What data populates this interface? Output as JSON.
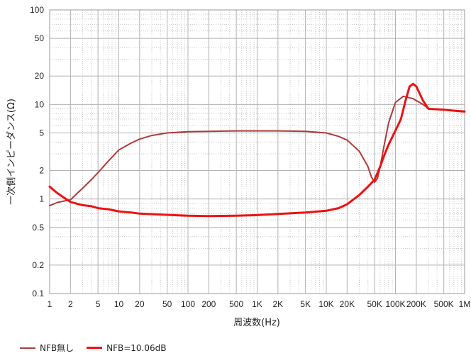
{
  "chart_data": {
    "type": "line",
    "xscale": "log",
    "yscale": "log",
    "xlabel": "周波数(Hz)",
    "ylabel": "一次側インピーダンス(Ω)",
    "xlim": [
      1,
      1000000
    ],
    "ylim": [
      0.1,
      100
    ],
    "grid": true,
    "legend_position": "bottom-left",
    "x_ticks": [
      {
        "value": 1,
        "label": "1"
      },
      {
        "value": 2,
        "label": "2"
      },
      {
        "value": 5,
        "label": "5"
      },
      {
        "value": 10,
        "label": "10"
      },
      {
        "value": 20,
        "label": "20"
      },
      {
        "value": 50,
        "label": "50"
      },
      {
        "value": 100,
        "label": "100"
      },
      {
        "value": 200,
        "label": "200"
      },
      {
        "value": 500,
        "label": "500"
      },
      {
        "value": 1000,
        "label": "1K"
      },
      {
        "value": 2000,
        "label": "2K"
      },
      {
        "value": 5000,
        "label": "5K"
      },
      {
        "value": 10000,
        "label": "10K"
      },
      {
        "value": 20000,
        "label": "20K"
      },
      {
        "value": 50000,
        "label": "50K"
      },
      {
        "value": 100000,
        "label": "100K"
      },
      {
        "value": 200000,
        "label": "200K"
      },
      {
        "value": 500000,
        "label": "500K"
      },
      {
        "value": 1000000,
        "label": "1M"
      }
    ],
    "y_ticks": [
      {
        "value": 0.1,
        "label": "0.1"
      },
      {
        "value": 0.2,
        "label": "0.2"
      },
      {
        "value": 0.5,
        "label": "0.5"
      },
      {
        "value": 1,
        "label": "1"
      },
      {
        "value": 2,
        "label": "2"
      },
      {
        "value": 5,
        "label": "5"
      },
      {
        "value": 10,
        "label": "10"
      },
      {
        "value": 20,
        "label": "20"
      },
      {
        "value": 50,
        "label": "50"
      },
      {
        "value": 100,
        "label": "100"
      }
    ],
    "series": [
      {
        "name": "NFB無し",
        "color": "#b03a3a",
        "points": [
          [
            1,
            0.85
          ],
          [
            1.3,
            0.92
          ],
          [
            1.6,
            0.95
          ],
          [
            2,
            0.98
          ],
          [
            2.5,
            1.15
          ],
          [
            3,
            1.3
          ],
          [
            4,
            1.6
          ],
          [
            5,
            1.9
          ],
          [
            7,
            2.5
          ],
          [
            10,
            3.3
          ],
          [
            15,
            3.9
          ],
          [
            20,
            4.3
          ],
          [
            30,
            4.7
          ],
          [
            50,
            5.0
          ],
          [
            100,
            5.15
          ],
          [
            200,
            5.2
          ],
          [
            500,
            5.25
          ],
          [
            1000,
            5.25
          ],
          [
            2000,
            5.25
          ],
          [
            5000,
            5.2
          ],
          [
            10000,
            5.0
          ],
          [
            15000,
            4.6
          ],
          [
            20000,
            4.2
          ],
          [
            30000,
            3.2
          ],
          [
            40000,
            2.2
          ],
          [
            45000,
            1.7
          ],
          [
            50000,
            1.5
          ],
          [
            55000,
            1.65
          ],
          [
            60000,
            2.2
          ],
          [
            70000,
            4.0
          ],
          [
            80000,
            6.5
          ],
          [
            100000,
            10.5
          ],
          [
            130000,
            12.2
          ],
          [
            180000,
            11.5
          ],
          [
            250000,
            10.0
          ],
          [
            300000,
            9.0
          ],
          [
            500000,
            8.8
          ],
          [
            1000000,
            8.5
          ]
        ]
      },
      {
        "name": "NFB=10.06dB",
        "color": "#ee1111",
        "points": [
          [
            1,
            1.35
          ],
          [
            1.3,
            1.15
          ],
          [
            2,
            0.93
          ],
          [
            3,
            0.86
          ],
          [
            4,
            0.84
          ],
          [
            5,
            0.8
          ],
          [
            7,
            0.78
          ],
          [
            10,
            0.74
          ],
          [
            15,
            0.72
          ],
          [
            20,
            0.7
          ],
          [
            50,
            0.68
          ],
          [
            100,
            0.665
          ],
          [
            200,
            0.66
          ],
          [
            500,
            0.665
          ],
          [
            1000,
            0.675
          ],
          [
            2000,
            0.695
          ],
          [
            5000,
            0.72
          ],
          [
            10000,
            0.75
          ],
          [
            15000,
            0.8
          ],
          [
            20000,
            0.88
          ],
          [
            30000,
            1.1
          ],
          [
            40000,
            1.35
          ],
          [
            50000,
            1.6
          ],
          [
            60000,
            2.2
          ],
          [
            70000,
            3.0
          ],
          [
            80000,
            3.8
          ],
          [
            100000,
            5.3
          ],
          [
            120000,
            7.0
          ],
          [
            140000,
            11.0
          ],
          [
            160000,
            15.5
          ],
          [
            180000,
            16.5
          ],
          [
            200000,
            15.5
          ],
          [
            250000,
            11.0
          ],
          [
            300000,
            9.0
          ],
          [
            500000,
            8.8
          ],
          [
            700000,
            8.6
          ],
          [
            1000000,
            8.4
          ]
        ]
      }
    ]
  }
}
